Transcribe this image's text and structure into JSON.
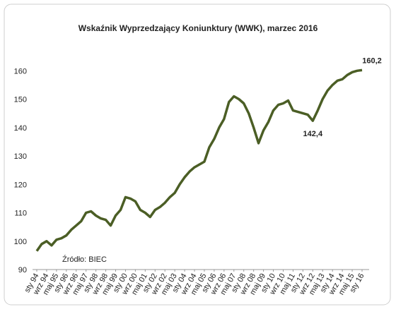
{
  "chart_data": {
    "type": "line",
    "title": "Wskaźnik Wyprzedzający Koniunktury (WWK),  marzec 2016",
    "source": "Źródło: BIEC",
    "categories": [
      "sty 94",
      null,
      "wrz 94",
      null,
      "maj 95",
      null,
      "sty 96",
      null,
      "wrz 96",
      null,
      "maj 97",
      null,
      "sty 98",
      null,
      "wrz 98",
      null,
      "maj 99",
      null,
      "sty 00",
      null,
      "wrz 00",
      null,
      "maj 01",
      null,
      "sty 02",
      null,
      "wrz 02",
      null,
      "maj 03",
      null,
      "sty 04",
      null,
      "wrz 04",
      null,
      "maj 05",
      null,
      "sty 06",
      null,
      "wrz 06",
      null,
      "maj 07",
      null,
      "sty 08",
      null,
      "wrz 08",
      null,
      "maj 09",
      null,
      "sty 10",
      null,
      "wrz 10",
      null,
      "maj 11",
      null,
      "sty 12",
      null,
      "wrz 12",
      null,
      "maj 13",
      null,
      "sty 14",
      null,
      "wrz 14",
      null,
      "maj 15",
      null,
      "sty 16"
    ],
    "series": [
      {
        "name": "WWK",
        "color": "#4b5e25",
        "values": [
          96.5,
          99,
          100,
          98.5,
          100.5,
          101,
          102,
          104,
          105.5,
          107,
          110,
          110.5,
          109,
          108,
          107.5,
          105.5,
          109,
          111,
          115.5,
          115,
          114,
          111,
          110,
          108.5,
          111,
          112,
          113.5,
          115.5,
          117,
          120,
          122.5,
          124.5,
          126,
          127,
          128,
          133,
          136,
          140,
          143,
          149,
          151,
          150,
          148.5,
          145,
          140,
          134.5,
          139,
          142,
          146,
          148,
          148.5,
          149.5,
          146,
          145.5,
          145,
          144.5,
          142.4,
          146,
          150,
          153,
          155,
          156.5,
          157,
          158.5,
          159.5,
          160,
          160.2
        ],
        "value_labels": [
          null,
          null,
          null,
          null,
          null,
          null,
          null,
          null,
          null,
          null,
          null,
          null,
          null,
          null,
          null,
          null,
          null,
          null,
          null,
          null,
          null,
          null,
          null,
          null,
          null,
          null,
          null,
          null,
          null,
          null,
          null,
          null,
          null,
          null,
          null,
          null,
          null,
          null,
          null,
          null,
          null,
          null,
          null,
          null,
          null,
          null,
          null,
          null,
          null,
          null,
          null,
          null,
          null,
          null,
          null,
          null,
          "142,4",
          null,
          null,
          null,
          null,
          null,
          null,
          null,
          null,
          null,
          "160,2"
        ]
      }
    ],
    "ylim": [
      90,
      170
    ],
    "yticks": [
      90,
      100,
      110,
      120,
      130,
      140,
      150,
      160
    ],
    "grid": false
  }
}
